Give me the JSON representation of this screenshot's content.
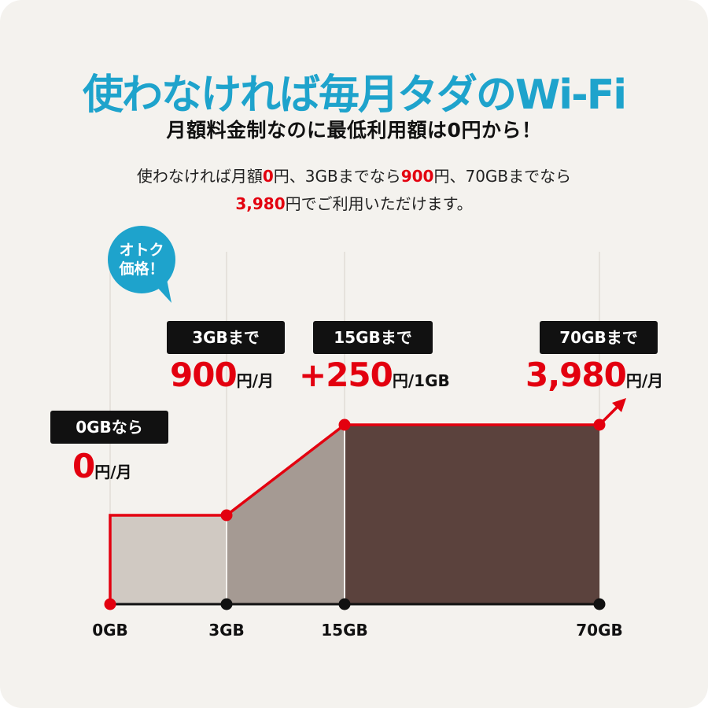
{
  "title": "使わなければ毎月タダのWi-Fi",
  "subtitle": "月額料金制なのに最低利用額は0円から！",
  "description": {
    "line1": [
      {
        "text": "使わなければ月額",
        "highlight": false
      },
      {
        "text": "0",
        "highlight": true
      },
      {
        "text": "円、3GBまでなら",
        "highlight": false
      },
      {
        "text": "900",
        "highlight": true
      },
      {
        "text": "円、70GBまでなら",
        "highlight": false
      }
    ],
    "line2": [
      {
        "text": "3,980",
        "highlight": true
      },
      {
        "text": "円でご利用いただけます。",
        "highlight": false
      }
    ]
  },
  "bubble": {
    "line1": "オトク",
    "line2": "価格！"
  },
  "tiers": [
    {
      "tag": "0GBなら",
      "price": "0",
      "unit": "円/月"
    },
    {
      "tag": "3GBまで",
      "price": "900",
      "unit": "円/月"
    },
    {
      "tag": "15GBまで",
      "price": "+250",
      "unit": "円/1GB"
    },
    {
      "tag": "70GBまで",
      "price": "3,980",
      "unit": "円/月"
    }
  ],
  "x_axis_labels": [
    "0GB",
    "3GB",
    "15GB",
    "70GB"
  ],
  "colors": {
    "accent_blue": "#1ea3cc",
    "price_red": "#e3000f",
    "segment_1": "#d0c9c2",
    "segment_2": "#a59a93",
    "segment_3": "#5b423d",
    "line": "#e3000f"
  }
}
